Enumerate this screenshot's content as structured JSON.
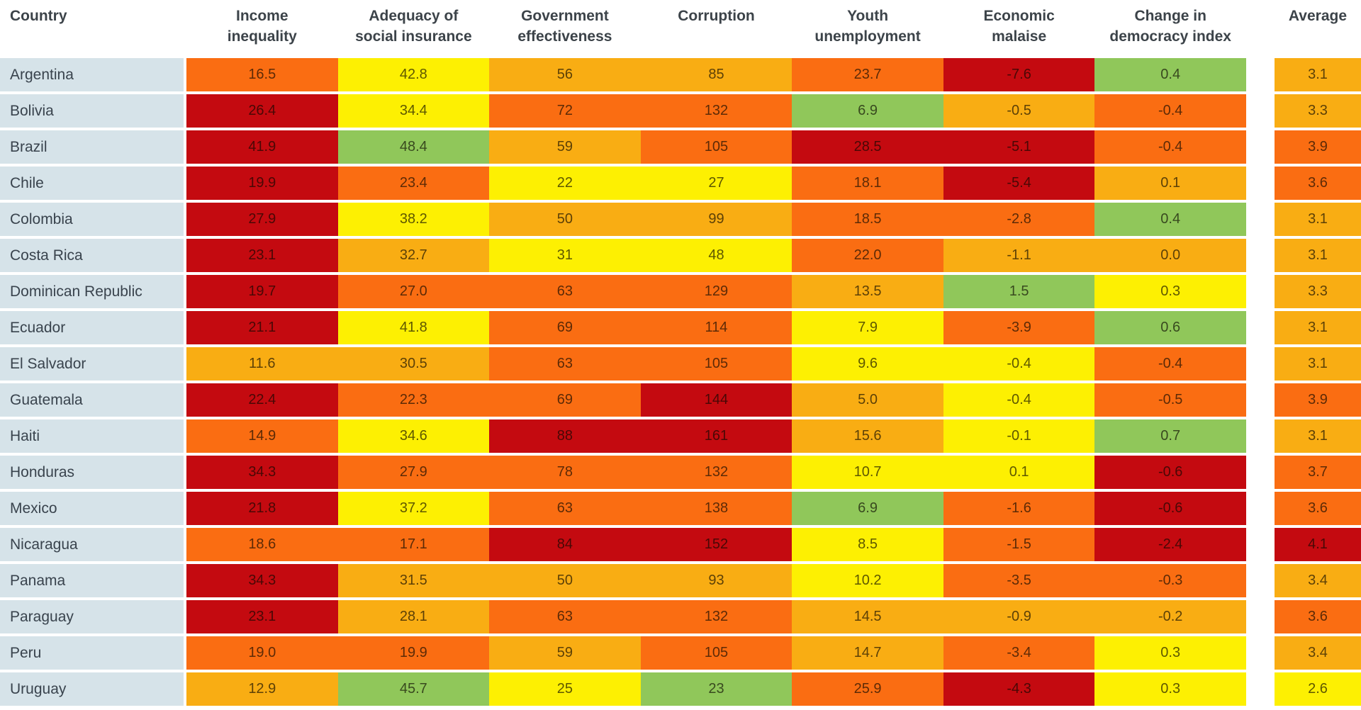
{
  "chart_data": {
    "type": "heatmap",
    "title": "",
    "columns": [
      {
        "key": "country",
        "line1": "Country",
        "line2": ""
      },
      {
        "key": "income_inequality",
        "line1": "Income",
        "line2": "inequality"
      },
      {
        "key": "adequacy_social_insurance",
        "line1": "Adequacy of",
        "line2": "social insurance"
      },
      {
        "key": "government_effectiveness",
        "line1": "Government",
        "line2": "effectiveness"
      },
      {
        "key": "corruption",
        "line1": "Corruption",
        "line2": ""
      },
      {
        "key": "youth_unemployment",
        "line1": "Youth",
        "line2": "unemployment"
      },
      {
        "key": "economic_malaise",
        "line1": "Economic",
        "line2": "malaise"
      },
      {
        "key": "change_democracy_index",
        "line1": "Change in",
        "line2": "democracy index"
      },
      {
        "key": "average",
        "line1": "Average",
        "line2": ""
      }
    ],
    "palette": {
      "r": "#c40a10",
      "o": "#fa6d12",
      "a": "#f9ad13",
      "y": "#fdf002",
      "g": "#90c75a",
      "country_bg": "#d6e3e9"
    },
    "color_legend_meaning": {
      "r": "worst",
      "o": "bad",
      "a": "medium",
      "y": "better",
      "g": "best"
    },
    "rows": [
      {
        "country": "Argentina",
        "cells": [
          [
            "16.5",
            "o"
          ],
          [
            "42.8",
            "y"
          ],
          [
            "56",
            "a"
          ],
          [
            "85",
            "a"
          ],
          [
            "23.7",
            "o"
          ],
          [
            "-7.6",
            "r"
          ],
          [
            "0.4",
            "g"
          ]
        ],
        "average": [
          "3.1",
          "a"
        ]
      },
      {
        "country": "Bolivia",
        "cells": [
          [
            "26.4",
            "r"
          ],
          [
            "34.4",
            "y"
          ],
          [
            "72",
            "o"
          ],
          [
            "132",
            "o"
          ],
          [
            "6.9",
            "g"
          ],
          [
            "-0.5",
            "a"
          ],
          [
            "-0.4",
            "o"
          ]
        ],
        "average": [
          "3.3",
          "a"
        ]
      },
      {
        "country": "Brazil",
        "cells": [
          [
            "41.9",
            "r"
          ],
          [
            "48.4",
            "g"
          ],
          [
            "59",
            "a"
          ],
          [
            "105",
            "o"
          ],
          [
            "28.5",
            "r"
          ],
          [
            "-5.1",
            "r"
          ],
          [
            "-0.4",
            "o"
          ]
        ],
        "average": [
          "3.9",
          "o"
        ]
      },
      {
        "country": "Chile",
        "cells": [
          [
            "19.9",
            "r"
          ],
          [
            "23.4",
            "o"
          ],
          [
            "22",
            "y"
          ],
          [
            "27",
            "y"
          ],
          [
            "18.1",
            "o"
          ],
          [
            "-5.4",
            "r"
          ],
          [
            "0.1",
            "a"
          ]
        ],
        "average": [
          "3.6",
          "o"
        ]
      },
      {
        "country": "Colombia",
        "cells": [
          [
            "27.9",
            "r"
          ],
          [
            "38.2",
            "y"
          ],
          [
            "50",
            "a"
          ],
          [
            "99",
            "a"
          ],
          [
            "18.5",
            "o"
          ],
          [
            "-2.8",
            "o"
          ],
          [
            "0.4",
            "g"
          ]
        ],
        "average": [
          "3.1",
          "a"
        ]
      },
      {
        "country": "Costa Rica",
        "cells": [
          [
            "23.1",
            "r"
          ],
          [
            "32.7",
            "a"
          ],
          [
            "31",
            "y"
          ],
          [
            "48",
            "y"
          ],
          [
            "22.0",
            "o"
          ],
          [
            "-1.1",
            "a"
          ],
          [
            "0.0",
            "a"
          ]
        ],
        "average": [
          "3.1",
          "a"
        ]
      },
      {
        "country": "Dominican Republic",
        "cells": [
          [
            "19.7",
            "r"
          ],
          [
            "27.0",
            "o"
          ],
          [
            "63",
            "o"
          ],
          [
            "129",
            "o"
          ],
          [
            "13.5",
            "a"
          ],
          [
            "1.5",
            "g"
          ],
          [
            "0.3",
            "y"
          ]
        ],
        "average": [
          "3.3",
          "a"
        ]
      },
      {
        "country": "Ecuador",
        "cells": [
          [
            "21.1",
            "r"
          ],
          [
            "41.8",
            "y"
          ],
          [
            "69",
            "o"
          ],
          [
            "114",
            "o"
          ],
          [
            "7.9",
            "y"
          ],
          [
            "-3.9",
            "o"
          ],
          [
            "0.6",
            "g"
          ]
        ],
        "average": [
          "3.1",
          "a"
        ]
      },
      {
        "country": "El Salvador",
        "cells": [
          [
            "11.6",
            "a"
          ],
          [
            "30.5",
            "a"
          ],
          [
            "63",
            "o"
          ],
          [
            "105",
            "o"
          ],
          [
            "9.6",
            "y"
          ],
          [
            "-0.4",
            "y"
          ],
          [
            "-0.4",
            "o"
          ]
        ],
        "average": [
          "3.1",
          "a"
        ]
      },
      {
        "country": "Guatemala",
        "cells": [
          [
            "22.4",
            "r"
          ],
          [
            "22.3",
            "o"
          ],
          [
            "69",
            "o"
          ],
          [
            "144",
            "r"
          ],
          [
            "5.0",
            "a"
          ],
          [
            "-0.4",
            "y"
          ],
          [
            "-0.5",
            "o"
          ]
        ],
        "average": [
          "3.9",
          "o"
        ]
      },
      {
        "country": "Haiti",
        "cells": [
          [
            "14.9",
            "o"
          ],
          [
            "34.6",
            "y"
          ],
          [
            "88",
            "r"
          ],
          [
            "161",
            "r"
          ],
          [
            "15.6",
            "a"
          ],
          [
            "-0.1",
            "y"
          ],
          [
            "0.7",
            "g"
          ]
        ],
        "average": [
          "3.1",
          "a"
        ]
      },
      {
        "country": "Honduras",
        "cells": [
          [
            "34.3",
            "r"
          ],
          [
            "27.9",
            "o"
          ],
          [
            "78",
            "o"
          ],
          [
            "132",
            "o"
          ],
          [
            "10.7",
            "y"
          ],
          [
            "0.1",
            "y"
          ],
          [
            "-0.6",
            "r"
          ]
        ],
        "average": [
          "3.7",
          "o"
        ]
      },
      {
        "country": "Mexico",
        "cells": [
          [
            "21.8",
            "r"
          ],
          [
            "37.2",
            "y"
          ],
          [
            "63",
            "o"
          ],
          [
            "138",
            "o"
          ],
          [
            "6.9",
            "g"
          ],
          [
            "-1.6",
            "o"
          ],
          [
            "-0.6",
            "r"
          ]
        ],
        "average": [
          "3.6",
          "o"
        ]
      },
      {
        "country": "Nicaragua",
        "cells": [
          [
            "18.6",
            "o"
          ],
          [
            "17.1",
            "o"
          ],
          [
            "84",
            "r"
          ],
          [
            "152",
            "r"
          ],
          [
            "8.5",
            "y"
          ],
          [
            "-1.5",
            "o"
          ],
          [
            "-2.4",
            "r"
          ]
        ],
        "average": [
          "4.1",
          "r"
        ]
      },
      {
        "country": "Panama",
        "cells": [
          [
            "34.3",
            "r"
          ],
          [
            "31.5",
            "a"
          ],
          [
            "50",
            "a"
          ],
          [
            "93",
            "a"
          ],
          [
            "10.2",
            "y"
          ],
          [
            "-3.5",
            "o"
          ],
          [
            "-0.3",
            "o"
          ]
        ],
        "average": [
          "3.4",
          "a"
        ]
      },
      {
        "country": "Paraguay",
        "cells": [
          [
            "23.1",
            "r"
          ],
          [
            "28.1",
            "a"
          ],
          [
            "63",
            "o"
          ],
          [
            "132",
            "o"
          ],
          [
            "14.5",
            "a"
          ],
          [
            "-0.9",
            "a"
          ],
          [
            "-0.2",
            "a"
          ]
        ],
        "average": [
          "3.6",
          "o"
        ]
      },
      {
        "country": "Peru",
        "cells": [
          [
            "19.0",
            "o"
          ],
          [
            "19.9",
            "o"
          ],
          [
            "59",
            "a"
          ],
          [
            "105",
            "o"
          ],
          [
            "14.7",
            "a"
          ],
          [
            "-3.4",
            "o"
          ],
          [
            "0.3",
            "y"
          ]
        ],
        "average": [
          "3.4",
          "a"
        ]
      },
      {
        "country": "Uruguay",
        "cells": [
          [
            "12.9",
            "a"
          ],
          [
            "45.7",
            "g"
          ],
          [
            "25",
            "y"
          ],
          [
            "23",
            "g"
          ],
          [
            "25.9",
            "o"
          ],
          [
            "-4.3",
            "r"
          ],
          [
            "0.3",
            "y"
          ]
        ],
        "average": [
          "2.6",
          "y"
        ]
      }
    ]
  }
}
